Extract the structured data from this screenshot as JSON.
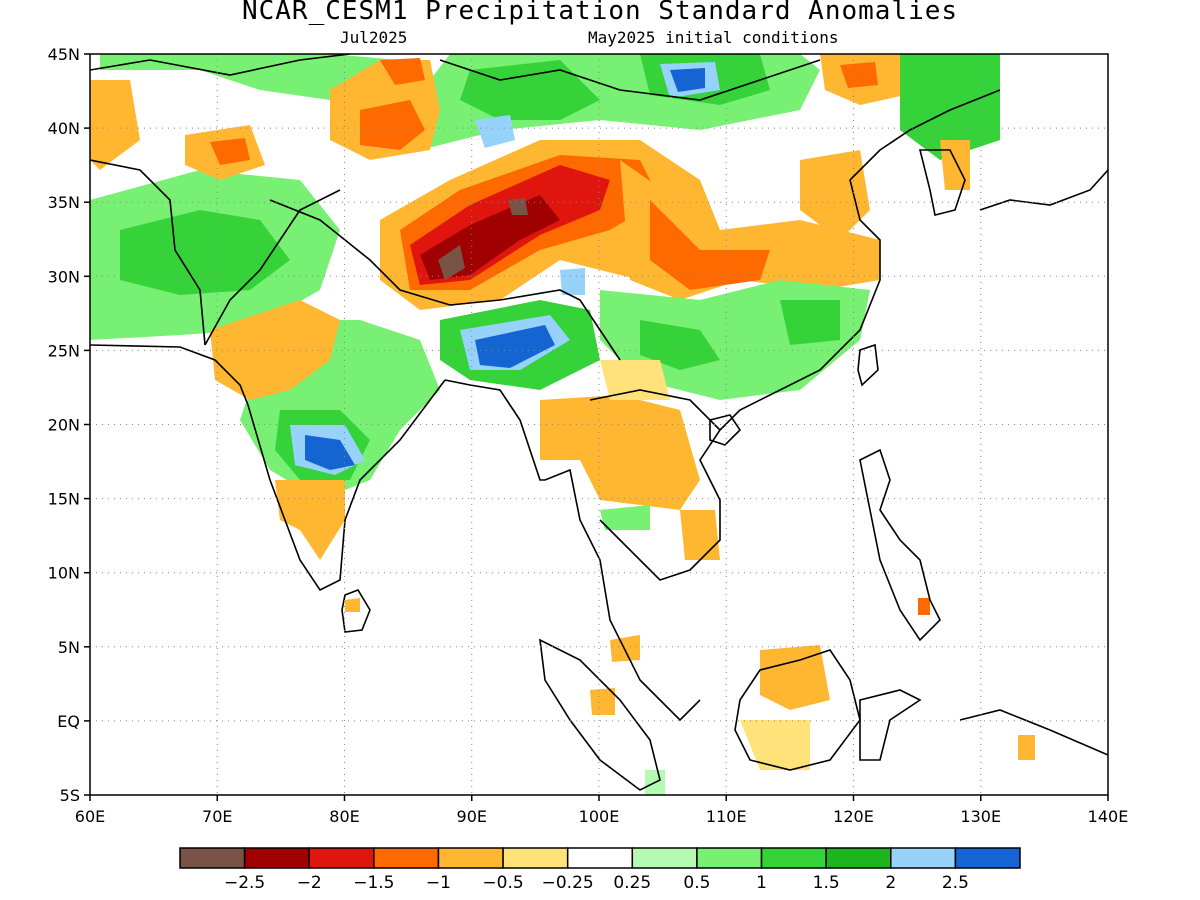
{
  "title": "NCAR_CESM1 Precipitation Standard Anomalies",
  "subtitle_left": "Jul2025",
  "subtitle_right": "May2025 initial conditions",
  "map": {
    "lon_range": [
      60,
      140
    ],
    "lat_range": [
      -5,
      45
    ],
    "lon_ticks": [
      {
        "value": 60,
        "label": "60E"
      },
      {
        "value": 70,
        "label": "70E"
      },
      {
        "value": 80,
        "label": "80E"
      },
      {
        "value": 90,
        "label": "90E"
      },
      {
        "value": 100,
        "label": "100E"
      },
      {
        "value": 110,
        "label": "110E"
      },
      {
        "value": 120,
        "label": "120E"
      },
      {
        "value": 130,
        "label": "130E"
      },
      {
        "value": 140,
        "label": "140E"
      }
    ],
    "lat_ticks": [
      {
        "value": 45,
        "label": "45N"
      },
      {
        "value": 40,
        "label": "40N"
      },
      {
        "value": 35,
        "label": "35N"
      },
      {
        "value": 30,
        "label": "30N"
      },
      {
        "value": 25,
        "label": "25N"
      },
      {
        "value": 20,
        "label": "20N"
      },
      {
        "value": 15,
        "label": "15N"
      },
      {
        "value": 10,
        "label": "10N"
      },
      {
        "value": 5,
        "label": "5N"
      },
      {
        "value": 0,
        "label": "EQ"
      },
      {
        "value": -5,
        "label": "5S"
      }
    ],
    "grid": "dotted"
  },
  "legend": {
    "colors": [
      "#7a5347",
      "#a00000",
      "#e0160e",
      "#ff6a00",
      "#ffb732",
      "#ffe27a",
      "#ffffff",
      "#b4fab0",
      "#78f074",
      "#36d23a",
      "#1eb41e",
      "#96d2fa",
      "#1464d2"
    ],
    "labels": [
      "−2.5",
      "−2",
      "−1.5",
      "−1",
      "−0.5",
      "−0.25",
      "0.25",
      "0.5",
      "1",
      "1.5",
      "2",
      "2.5"
    ]
  },
  "anomaly_regions": [
    {
      "name": "tibet-dry-core",
      "level": -2.5,
      "color": "#7a5347"
    },
    {
      "name": "tibet-dry",
      "level": -2,
      "color": "#a00000"
    },
    {
      "name": "bangladesh-wet",
      "level": 2.5,
      "color": "#1464d2"
    },
    {
      "name": "central-india-wet",
      "level": 2.5,
      "color": "#1464d2"
    },
    {
      "name": "mongolia-wet",
      "level": 2.5,
      "color": "#1464d2"
    },
    {
      "name": "indochina-dry",
      "level": -0.5,
      "color": "#ffb732"
    },
    {
      "name": "south-china-wet",
      "level": 1,
      "color": "#78f074"
    }
  ]
}
